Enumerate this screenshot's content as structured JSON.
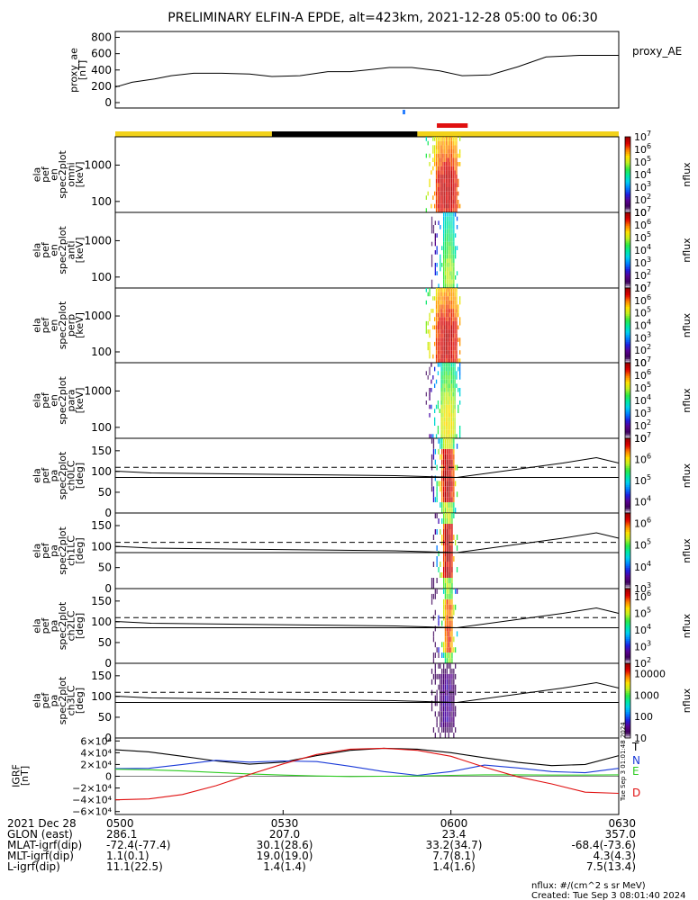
{
  "title": "PRELIMINARY ELFIN-A EPDE, alt=423km, 2021-12-28 05:00 to 06:30",
  "colors": {
    "axes": "#000000",
    "bar_yellow": "#f2d21a",
    "bar_black": "#000000",
    "bar_red": "#e01010",
    "T": "#000000",
    "N": "#1a3ad8",
    "E": "#2ecc22",
    "D": "#e01010"
  },
  "chart_data": [
    {
      "type": "line",
      "ylabel_lines": [
        "proxy_ae",
        "[nT]"
      ],
      "legend": "proxy_AE",
      "yticks": [
        "800",
        "600",
        "400",
        "200",
        "0"
      ],
      "ylim": [
        0,
        850
      ],
      "x_minutes": [
        0,
        3,
        7,
        10,
        14,
        19,
        24,
        28,
        33,
        38,
        42,
        45,
        49,
        53,
        58,
        62,
        67,
        72,
        77,
        83,
        90
      ],
      "values": [
        190,
        250,
        290,
        330,
        360,
        360,
        350,
        320,
        330,
        380,
        380,
        400,
        430,
        430,
        390,
        330,
        340,
        440,
        560,
        580,
        580
      ]
    },
    {
      "type": "line",
      "name": "status_bar",
      "segments": [
        {
          "start": 0,
          "end": 28,
          "color": "yellow"
        },
        {
          "start": 28,
          "end": 54,
          "color": "black"
        },
        {
          "start": 54,
          "end": 90,
          "color": "yellow"
        }
      ],
      "science_zone": [
        57,
        63
      ]
    },
    {
      "type": "heatmap",
      "ylabel_lines": [
        "ela",
        "pef",
        "en",
        "spec2plot",
        "omni",
        "[keV]"
      ],
      "yticks": [
        "1000",
        "100"
      ],
      "yscale": "log",
      "ylim": [
        50,
        6000
      ],
      "cbar_label": "nflux",
      "cbar_ticks": [
        "10^7",
        "10^6",
        "10^5",
        "10^4",
        "10^3",
        "10^2",
        "10"
      ],
      "cbar_range": [
        10,
        10000000
      ],
      "burst": {
        "start": 55.5,
        "end": 61.5,
        "peak": 59.2,
        "width": 1.8,
        "vmax": 7000000,
        "vlo": 70,
        "vhi": 500
      }
    },
    {
      "type": "heatmap",
      "ylabel_lines": [
        "ela",
        "pef",
        "en",
        "spec2plot",
        "anti",
        "[keV]"
      ],
      "yticks": [
        "1000",
        "100"
      ],
      "yscale": "log",
      "ylim": [
        50,
        6000
      ],
      "cbar_label": "nflux",
      "cbar_ticks": [
        "10^7",
        "10^6",
        "10^5",
        "10^4",
        "10^3",
        "10^2",
        "10"
      ],
      "cbar_range": [
        10,
        10000000
      ],
      "burst": {
        "start": 56.5,
        "end": 61.0,
        "peak": 59.5,
        "width": 1.0,
        "vmax": 100000,
        "vlo": 70,
        "vhi": 200
      }
    },
    {
      "type": "heatmap",
      "ylabel_lines": [
        "ela",
        "pef",
        "en",
        "spec2plot",
        "perp",
        "[keV]"
      ],
      "yticks": [
        "1000",
        "100"
      ],
      "yscale": "log",
      "ylim": [
        50,
        6000
      ],
      "cbar_label": "nflux",
      "cbar_ticks": [
        "10^7",
        "10^6",
        "10^5",
        "10^4",
        "10^3",
        "10^2",
        "10"
      ],
      "cbar_range": [
        10,
        10000000
      ],
      "burst": {
        "start": 55.5,
        "end": 61.5,
        "peak": 59.2,
        "width": 1.8,
        "vmax": 7000000,
        "vlo": 70,
        "vhi": 500
      }
    },
    {
      "type": "heatmap",
      "ylabel_lines": [
        "ela",
        "pef",
        "en",
        "spec2plot",
        "para",
        "[keV]"
      ],
      "yticks": [
        "1000",
        "100"
      ],
      "yscale": "log",
      "ylim": [
        50,
        6000
      ],
      "cbar_label": "nflux",
      "cbar_ticks": [
        "10^7",
        "10^6",
        "10^5",
        "10^4",
        "10^3",
        "10^2",
        "10"
      ],
      "cbar_range": [
        10,
        10000000
      ],
      "burst": {
        "start": 55.5,
        "end": 61.5,
        "peak": 59.4,
        "width": 1.2,
        "vmax": 300000,
        "vlo": 70,
        "vhi": 250
      }
    },
    {
      "type": "heatmap",
      "ylabel_lines": [
        "ela",
        "pef",
        "pa",
        "spec2plot",
        "ch0LC",
        "[deg]"
      ],
      "yticks": [
        "150",
        "100",
        "50",
        "0"
      ],
      "ylim": [
        0,
        180
      ],
      "cbar_label": "nflux",
      "cbar_ticks": [
        "10^7",
        "10^6",
        "10^5",
        "10^4"
      ],
      "cbar_range": [
        3000,
        10000000
      ],
      "dashed_level": 110,
      "solid_level": 90,
      "burst": {
        "start": 56.5,
        "end": 61.0,
        "peak": 59.3,
        "width": 1.0,
        "vmax": 10000000
      }
    },
    {
      "type": "heatmap",
      "ylabel_lines": [
        "ela",
        "pef",
        "pa",
        "spec2plot",
        "ch1LC",
        "[deg]"
      ],
      "yticks": [
        "150",
        "100",
        "50",
        "0"
      ],
      "ylim": [
        0,
        180
      ],
      "cbar_label": "nflux",
      "cbar_ticks": [
        "10^6",
        "10^5",
        "10^4",
        "10^3"
      ],
      "cbar_range": [
        1000,
        3000000
      ],
      "dashed_level": 110,
      "solid_level": 90,
      "burst": {
        "start": 56.5,
        "end": 61.0,
        "peak": 59.4,
        "width": 0.9,
        "vmax": 3000000
      }
    },
    {
      "type": "heatmap",
      "ylabel_lines": [
        "ela",
        "pef",
        "pa",
        "spec2plot",
        "ch2LC",
        "[deg]"
      ],
      "yticks": [
        "150",
        "100",
        "50",
        "0"
      ],
      "ylim": [
        0,
        180
      ],
      "cbar_label": "nflux",
      "cbar_ticks": [
        "10^6",
        "10^5",
        "10^4",
        "10^3",
        "10^2"
      ],
      "cbar_range": [
        100,
        3000000
      ],
      "dashed_level": 110,
      "solid_level": 90,
      "burst": {
        "start": 56.5,
        "end": 61.0,
        "peak": 59.5,
        "width": 0.7,
        "vmax": 1000000
      }
    },
    {
      "type": "heatmap",
      "ylabel_lines": [
        "ela",
        "pef",
        "pa",
        "spec2plot",
        "ch3LC",
        "[deg]"
      ],
      "yticks": [
        "150",
        "100",
        "50",
        "0"
      ],
      "ylim": [
        0,
        180
      ],
      "cbar_label": "nflux",
      "cbar_ticks": [
        "10000",
        "1000",
        "100",
        "10"
      ],
      "cbar_range": [
        10,
        30000
      ],
      "dashed_level": 110,
      "solid_level": 90,
      "burst": {
        "start": 56.5,
        "end": 61.0,
        "peak": 59.2,
        "width": 1.5,
        "vmax": 30
      }
    },
    {
      "type": "line",
      "ylabel_lines": [
        "IGRF",
        "[nT]"
      ],
      "yticks": [
        "6×10⁴",
        "4×10⁴",
        "2×10⁴",
        "0",
        "−2×10⁴",
        "−4×10⁴",
        "−6×10⁴"
      ],
      "ylim": [
        -65000,
        65000
      ],
      "legend": [
        "T",
        "N",
        "E",
        "D"
      ],
      "series": [
        {
          "name": "T",
          "x": [
            0,
            6,
            12,
            18,
            24,
            30,
            36,
            42,
            48,
            54,
            60,
            66,
            72,
            78,
            84,
            90
          ],
          "values": [
            45000,
            41500,
            34000,
            26000,
            20500,
            24000,
            35000,
            44000,
            47500,
            46000,
            40000,
            31500,
            23500,
            18000,
            20000,
            35000
          ]
        },
        {
          "name": "N",
          "x": [
            0,
            6,
            12,
            18,
            24,
            30,
            36,
            42,
            48,
            54,
            60,
            66,
            72,
            78,
            84,
            90
          ],
          "values": [
            13000,
            13500,
            20000,
            27000,
            24000,
            26000,
            25000,
            17000,
            8000,
            1500,
            8000,
            19000,
            14000,
            8000,
            6000,
            13500
          ]
        },
        {
          "name": "E",
          "x": [
            0,
            6,
            12,
            18,
            24,
            30,
            36,
            42,
            48,
            54,
            60,
            66,
            72,
            78,
            84,
            90
          ],
          "values": [
            12000,
            11000,
            9000,
            6500,
            4000,
            2000,
            500,
            -500,
            0,
            500,
            1500,
            2500,
            2500,
            2000,
            2000,
            2500
          ]
        },
        {
          "name": "D",
          "x": [
            0,
            6,
            12,
            18,
            24,
            30,
            36,
            42,
            48,
            54,
            60,
            66,
            72,
            78,
            84,
            90
          ],
          "values": [
            -40000,
            -38500,
            -31000,
            -16000,
            3000,
            21000,
            37000,
            46000,
            47500,
            44000,
            34000,
            15500,
            -1000,
            -13000,
            -27000,
            -29000
          ]
        }
      ]
    }
  ],
  "colorbar_gradient": [
    "#ffffff",
    "#3c005a",
    "#5a0090",
    "#2020e0",
    "#0080ff",
    "#00d0f0",
    "#00e8a0",
    "#30e840",
    "#c0f020",
    "#ffe000",
    "#ff8000",
    "#e00000",
    "#a00000"
  ],
  "xaxis": {
    "ticks": [
      {
        "minute": 0,
        "label": "0500"
      },
      {
        "minute": 30,
        "label": "0530"
      },
      {
        "minute": 60,
        "label": "0600"
      },
      {
        "minute": 90,
        "label": "0630"
      }
    ],
    "row_labels": [
      "2021 Dec 28",
      "GLON (east)",
      "MLAT-igrf(dip)",
      "MLT-igrf(dip)",
      "L-igrf(dip)"
    ],
    "columns": [
      [
        "0500",
        "286.1",
        "-72.4(-77.4)",
        "1.1(0.1)",
        "11.1(22.5)"
      ],
      [
        "0530",
        "207.0",
        "30.1(28.6)",
        "19.0(19.0)",
        "1.4(1.4)"
      ],
      [
        "0600",
        "23.4",
        "33.2(34.7)",
        "7.7(8.1)",
        "1.4(1.6)"
      ],
      [
        "0630",
        "357.0",
        "-68.4(-73.6)",
        "4.3(4.3)",
        "7.5(13.4)"
      ]
    ]
  },
  "vertical_stamp": "Tue Sep  3 01:01:48 2024",
  "footer": {
    "units": "nflux: #/(cm^2 s sr MeV)",
    "created": "Created: Tue Sep  3 08:01:40 2024"
  }
}
